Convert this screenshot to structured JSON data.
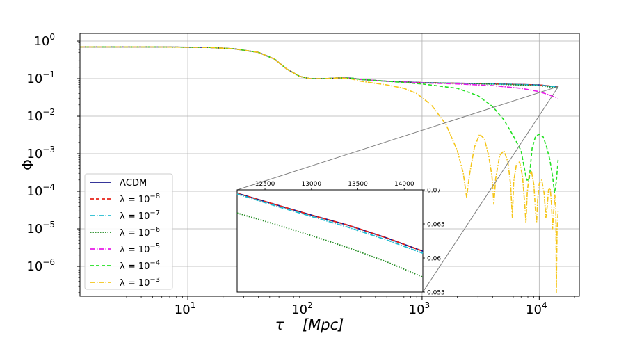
{
  "chart_data": [
    {
      "type": "line",
      "title": "",
      "xlabel": "τ    [Mpc]",
      "ylabel": "Φ",
      "xscale": "log",
      "yscale": "log",
      "xlim": [
        1.2,
        22000
      ],
      "ylim": [
        1.6e-07,
        1.6
      ],
      "grid": true,
      "xticks": [
        {
          "exp": "1"
        },
        {
          "exp": "2"
        },
        {
          "exp": "3"
        },
        {
          "exp": "4"
        }
      ],
      "yticks": [
        {
          "exp": "0"
        },
        {
          "exp": "-1"
        },
        {
          "exp": "-2"
        },
        {
          "exp": "-3"
        },
        {
          "exp": "-4"
        },
        {
          "exp": "-5"
        },
        {
          "exp": "-6"
        }
      ],
      "legend_position": "lower-left",
      "legend": [
        {
          "label": "ΛCDM",
          "color": "#1a1a8c",
          "style": "solid"
        },
        {
          "label_base": "λ = 10",
          "exp": "−8",
          "color": "#e8231a",
          "style": "dashed"
        },
        {
          "label_base": "λ = 10",
          "exp": "−7",
          "color": "#22bcd0",
          "style": "dashdot"
        },
        {
          "label_base": "λ = 10",
          "exp": "−6",
          "color": "#228b22",
          "style": "dotted"
        },
        {
          "label_base": "λ = 10",
          "exp": "−5",
          "color": "#e81ae8",
          "style": "dashdot"
        },
        {
          "label_base": "λ = 10",
          "exp": "−4",
          "color": "#22e022",
          "style": "dashed"
        },
        {
          "label_base": "λ = 10",
          "exp": "−3",
          "color": "#f5c518",
          "style": "dashdot"
        }
      ],
      "series": [
        {
          "name": "ΛCDM",
          "x": [
            1.2,
            5,
            15,
            25,
            40,
            55,
            70,
            90,
            110,
            150,
            200,
            250,
            300,
            500,
            1000,
            3000,
            10000,
            14500
          ],
          "y": [
            0.7,
            0.7,
            0.68,
            0.62,
            0.5,
            0.33,
            0.18,
            0.115,
            0.1,
            0.1,
            0.105,
            0.103,
            0.095,
            0.085,
            0.078,
            0.074,
            0.068,
            0.06
          ]
        },
        {
          "name": "λ=1e-8",
          "x": [
            1.2,
            5,
            15,
            25,
            40,
            55,
            70,
            90,
            110,
            150,
            200,
            250,
            300,
            500,
            1000,
            3000,
            10000,
            14500
          ],
          "y": [
            0.7,
            0.7,
            0.68,
            0.62,
            0.5,
            0.33,
            0.18,
            0.115,
            0.1,
            0.1,
            0.105,
            0.103,
            0.095,
            0.085,
            0.078,
            0.074,
            0.068,
            0.06
          ]
        },
        {
          "name": "λ=1e-7",
          "x": [
            1.2,
            5,
            15,
            25,
            40,
            55,
            70,
            90,
            110,
            150,
            200,
            250,
            300,
            500,
            1000,
            3000,
            10000,
            14500
          ],
          "y": [
            0.7,
            0.7,
            0.68,
            0.62,
            0.5,
            0.33,
            0.18,
            0.115,
            0.1,
            0.1,
            0.105,
            0.103,
            0.095,
            0.085,
            0.078,
            0.074,
            0.067,
            0.059
          ]
        },
        {
          "name": "λ=1e-6",
          "x": [
            1.2,
            5,
            15,
            25,
            40,
            55,
            70,
            90,
            110,
            150,
            200,
            250,
            300,
            500,
            1000,
            3000,
            10000,
            14500
          ],
          "y": [
            0.7,
            0.7,
            0.68,
            0.62,
            0.5,
            0.33,
            0.18,
            0.115,
            0.1,
            0.1,
            0.105,
            0.103,
            0.095,
            0.085,
            0.078,
            0.073,
            0.065,
            0.056
          ]
        },
        {
          "name": "λ=1e-5",
          "x": [
            1.2,
            5,
            15,
            25,
            40,
            55,
            70,
            90,
            110,
            150,
            200,
            250,
            300,
            500,
            1000,
            2000,
            4000,
            7000,
            10000,
            12000,
            14500
          ],
          "y": [
            0.7,
            0.7,
            0.68,
            0.62,
            0.5,
            0.33,
            0.18,
            0.115,
            0.1,
            0.1,
            0.105,
            0.103,
            0.095,
            0.085,
            0.077,
            0.072,
            0.065,
            0.055,
            0.045,
            0.037,
            0.03
          ]
        },
        {
          "name": "λ=1e-4",
          "x": [
            1.2,
            5,
            15,
            25,
            40,
            55,
            70,
            90,
            110,
            150,
            200,
            250,
            300,
            500,
            1000,
            2000,
            3000,
            4000,
            5000,
            6000,
            7000,
            7800,
            8200,
            8700,
            9300,
            10000,
            10800,
            11500,
            12300,
            13000,
            13500,
            14000,
            14500
          ],
          "y": [
            0.7,
            0.7,
            0.68,
            0.62,
            0.5,
            0.33,
            0.18,
            0.115,
            0.1,
            0.1,
            0.105,
            0.103,
            0.095,
            0.085,
            0.072,
            0.055,
            0.035,
            0.018,
            0.008,
            0.003,
            0.0012,
            0.0002,
            0.0002,
            0.0014,
            0.0029,
            0.0033,
            0.0028,
            0.0016,
            0.0007,
            0.00025,
            9e-05,
            0.00018,
            0.0007
          ]
        },
        {
          "name": "λ=1e-3",
          "x": [
            1.2,
            5,
            15,
            25,
            40,
            55,
            70,
            90,
            110,
            150,
            200,
            250,
            300,
            400,
            500,
            700,
            900,
            1200,
            1600,
            2000,
            2250,
            2400,
            2550,
            2800,
            3100,
            3400,
            3700,
            3950,
            4100,
            4250,
            4600,
            5000,
            5400,
            5700,
            5900,
            6050,
            6400,
            6800,
            7200,
            7500,
            7700,
            7900,
            8200,
            8600,
            9000,
            9300,
            9500,
            9700,
            10000,
            10500,
            11000,
            11400,
            11700,
            12000,
            12400,
            12700,
            13000,
            13300,
            13600,
            13850,
            14000,
            14200,
            14500
          ],
          "y": [
            0.7,
            0.7,
            0.68,
            0.62,
            0.5,
            0.33,
            0.18,
            0.115,
            0.1,
            0.1,
            0.105,
            0.098,
            0.085,
            0.075,
            0.068,
            0.055,
            0.04,
            0.02,
            0.006,
            0.0012,
            0.0003,
            7e-05,
            0.0003,
            0.0015,
            0.0033,
            0.0025,
            0.0009,
            0.00025,
            4.5e-05,
            0.00022,
            0.0009,
            0.0012,
            0.0006,
            0.00015,
            2e-05,
            0.00018,
            0.00055,
            0.0006,
            0.00025,
            5e-05,
            1.5e-05,
            9e-05,
            0.00028,
            0.00033,
            0.00015,
            3e-05,
            1.5e-05,
            6e-05,
            0.00016,
            0.0002,
            9e-05,
            2e-05,
            4e-05,
            0.00011,
            0.00012,
            5e-05,
            1e-05,
            3e-05,
            8e-05,
            4e-05,
            2e-07,
            1e-05,
            3e-05
          ]
        }
      ]
    },
    {
      "type": "line",
      "title": "inset",
      "xlim": [
        12200,
        14200
      ],
      "ylim": [
        0.055,
        0.07
      ],
      "xticks": [
        "12500",
        "13000",
        "13500",
        "14000"
      ],
      "yticks": [
        "0.07",
        "0.065",
        "0.06",
        "0.055"
      ],
      "series": [
        {
          "name": "ΛCDM",
          "x": [
            12200,
            12600,
            13000,
            13400,
            13800,
            14200
          ],
          "y": [
            0.0695,
            0.0679,
            0.0663,
            0.0648,
            0.063,
            0.061
          ]
        },
        {
          "name": "λ=1e-8",
          "x": [
            12200,
            12600,
            13000,
            13400,
            13800,
            14200
          ],
          "y": [
            0.0695,
            0.0679,
            0.0663,
            0.0648,
            0.063,
            0.061
          ]
        },
        {
          "name": "λ=1e-7",
          "x": [
            12200,
            12600,
            13000,
            13400,
            13800,
            14200
          ],
          "y": [
            0.0694,
            0.0677,
            0.0661,
            0.0645,
            0.0627,
            0.0607
          ]
        },
        {
          "name": "λ=1e-6",
          "x": [
            12200,
            12600,
            13000,
            13400,
            13800,
            14200
          ],
          "y": [
            0.0666,
            0.065,
            0.0633,
            0.0615,
            0.0595,
            0.0572
          ]
        }
      ]
    }
  ]
}
